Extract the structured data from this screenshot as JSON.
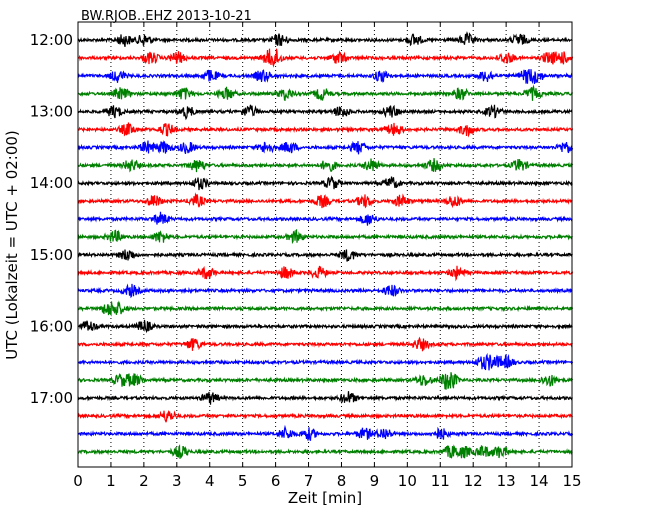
{
  "chart_data": {
    "type": "line",
    "title": "BW.RJOB..EHZ 2013-10-21",
    "xlabel": "Zeit  [min]",
    "ylabel": "UTC (Lokalzeit = UTC + 02:00)",
    "xlim": [
      0,
      15
    ],
    "x_ticks": [
      "0",
      "1",
      "2",
      "3",
      "4",
      "5",
      "6",
      "7",
      "8",
      "9",
      "10",
      "11",
      "12",
      "13",
      "14",
      "15"
    ],
    "y_ticks": [
      "12:00",
      "13:00",
      "14:00",
      "15:00",
      "16:00",
      "17:00"
    ],
    "y_tick_rows": [
      0,
      4,
      8,
      12,
      16,
      20
    ],
    "grid": "vertical dotted lines at each minute",
    "line_colors": [
      "#000000",
      "#ff0000",
      "#0000ff",
      "#008000"
    ],
    "traces": [
      {
        "start": "12:00",
        "events": [
          1.4,
          2.0,
          6.1,
          10.2,
          11.8,
          13.4
        ]
      },
      {
        "start": "12:15",
        "events": [
          2.2,
          3.0,
          5.8,
          6.0,
          7.9,
          13.0,
          14.3,
          14.7
        ]
      },
      {
        "start": "12:30",
        "events": [
          1.2,
          4.0,
          5.6,
          9.2,
          12.4,
          13.6,
          13.9
        ]
      },
      {
        "start": "12:45",
        "events": [
          1.3,
          3.2,
          4.5,
          6.3,
          7.4,
          11.6,
          13.8
        ]
      },
      {
        "start": "13:00",
        "events": [
          1.1,
          3.3,
          5.2,
          8.0,
          9.5,
          12.6
        ]
      },
      {
        "start": "13:15",
        "events": [
          1.5,
          2.7,
          9.6,
          11.8
        ]
      },
      {
        "start": "13:30",
        "events": [
          2.1,
          2.6,
          3.3,
          5.7,
          6.4,
          8.5,
          14.8
        ]
      },
      {
        "start": "13:45",
        "events": [
          1.6,
          3.6,
          7.6,
          8.9,
          10.8,
          13.4
        ]
      },
      {
        "start": "14:00",
        "events": [
          3.7,
          7.7,
          9.5
        ]
      },
      {
        "start": "14:15",
        "events": [
          2.3,
          3.6,
          7.4,
          8.7,
          9.8,
          11.4
        ]
      },
      {
        "start": "14:30",
        "events": [
          2.5,
          8.8
        ]
      },
      {
        "start": "14:45",
        "events": [
          1.1,
          2.5,
          6.6
        ]
      },
      {
        "start": "15:00",
        "events": [
          1.5,
          8.2
        ]
      },
      {
        "start": "15:15",
        "events": [
          3.9,
          6.3,
          7.3,
          11.5
        ]
      },
      {
        "start": "15:30",
        "events": [
          1.6,
          9.5
        ]
      },
      {
        "start": "15:45",
        "events": [
          0.9,
          1.2
        ]
      },
      {
        "start": "16:00",
        "events": [
          0.3,
          2.0
        ]
      },
      {
        "start": "16:15",
        "events": [
          3.5,
          10.4
        ]
      },
      {
        "start": "16:30",
        "events": [
          12.3,
          12.6,
          13.0
        ]
      },
      {
        "start": "16:45",
        "events": [
          1.3,
          1.7,
          10.5,
          11.2,
          11.3,
          14.3
        ]
      },
      {
        "start": "17:00",
        "events": [
          4.0,
          8.2
        ]
      },
      {
        "start": "17:15",
        "events": [
          2.7
        ]
      },
      {
        "start": "17:30",
        "events": [
          6.3,
          7.0,
          8.7,
          9.3,
          11.0
        ]
      },
      {
        "start": "17:45",
        "events": [
          3.1,
          11.3,
          11.7,
          12.3,
          12.8
        ]
      }
    ]
  }
}
